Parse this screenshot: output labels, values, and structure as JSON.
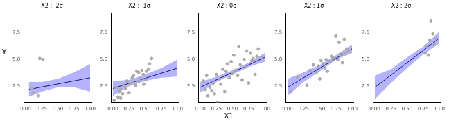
{
  "chart_data": {
    "type": "scatter",
    "x_label": "X1",
    "y_label": "Y",
    "xlim": [
      -0.03,
      1.03
    ],
    "ylim": [
      1.0,
      9.3
    ],
    "xticks": [
      {
        "value": 0,
        "label": "0.00"
      },
      {
        "value": 0.25,
        "label": "0.25"
      },
      {
        "value": 0.5,
        "label": "0.50"
      },
      {
        "value": 0.75,
        "label": "0.75"
      },
      {
        "value": 1,
        "label": "1.00"
      }
    ],
    "yticks": [
      2.5,
      {
        "value": 5,
        "label": "5.0"
      },
      7.5
    ],
    "grid": false,
    "panels": [
      {
        "title": "X2 : -2σ",
        "points": {
          "color": "#aaaaaa",
          "x": [
            0.1,
            0.12,
            0.2,
            0.22,
            0.27
          ],
          "y": [
            2.3,
            1.9,
            1.6,
            5.1,
            5.0
          ]
        },
        "fit": {
          "color": "#191970",
          "x": [
            0.05,
            1
          ],
          "y": [
            2.2,
            3.3
          ]
        },
        "band": {
          "color": "#9999ff",
          "x": [
            0.05,
            0.25,
            0.5,
            0.75,
            1
          ],
          "lower": [
            1.5,
            2.0,
            2.4,
            2.4,
            2.0
          ],
          "upper": [
            2.9,
            2.9,
            3.2,
            3.8,
            4.6
          ]
        }
      },
      {
        "title": "X2 : -1σ",
        "points": {
          "color": "#aaaaaa",
          "x": [
            0.02,
            0.05,
            0.08,
            0.1,
            0.12,
            0.15,
            0.17,
            0.2,
            0.22,
            0.25,
            0.27,
            0.3,
            0.32,
            0.35,
            0.37,
            0.4,
            0.42,
            0.45,
            0.47,
            0.5,
            0.52,
            0.55,
            0.57,
            0.6,
            0.12,
            0.3,
            0.4,
            0.48
          ],
          "y": [
            1.2,
            2.4,
            1.5,
            2.0,
            1.4,
            1.8,
            2.6,
            2.3,
            3.0,
            1.9,
            2.8,
            2.9,
            3.5,
            2.6,
            3.9,
            3.8,
            3.2,
            4.0,
            3.6,
            3.1,
            3.9,
            4.1,
            4.6,
            5.1,
            2.2,
            3.3,
            3.0,
            2.7
          ]
        },
        "fit": {
          "color": "#191970",
          "x": [
            0,
            1
          ],
          "y": [
            2.3,
            4.2
          ]
        },
        "band": {
          "color": "#9999ff",
          "x": [
            0,
            0.25,
            0.5,
            0.75,
            1
          ],
          "lower": [
            1.6,
            2.5,
            3.0,
            3.3,
            3.4
          ],
          "upper": [
            3.0,
            3.1,
            3.6,
            4.2,
            5.0
          ]
        }
      },
      {
        "title": "X2 : 0σ",
        "points": {
          "color": "#aaaaaa",
          "x": [
            0.05,
            0.08,
            0.1,
            0.12,
            0.15,
            0.18,
            0.2,
            0.22,
            0.25,
            0.27,
            0.3,
            0.32,
            0.35,
            0.38,
            0.4,
            0.42,
            0.45,
            0.48,
            0.5,
            0.52,
            0.55,
            0.58,
            0.6,
            0.62,
            0.65,
            0.68,
            0.7,
            0.72,
            0.75,
            0.78,
            0.8,
            0.82,
            0.85,
            0.88,
            0.9,
            0.95
          ],
          "y": [
            3.0,
            2.2,
            3.5,
            1.6,
            2.4,
            2.1,
            2.8,
            1.8,
            3.6,
            1.0,
            3.2,
            2.7,
            4.1,
            2.0,
            3.9,
            4.6,
            3.3,
            4.8,
            3.7,
            5.4,
            4.0,
            3.5,
            6.2,
            4.5,
            3.1,
            5.0,
            4.3,
            5.8,
            2.8,
            5.6,
            4.9,
            5.1,
            3.6,
            5.3,
            6.0,
            5.2
          ]
        },
        "fit": {
          "color": "#191970",
          "x": [
            0,
            1
          ],
          "y": [
            2.4,
            5.2
          ]
        },
        "band": {
          "color": "#9999ff",
          "x": [
            0,
            0.25,
            0.5,
            0.75,
            1
          ],
          "lower": [
            1.9,
            2.9,
            3.6,
            4.3,
            4.8
          ],
          "upper": [
            2.9,
            3.4,
            4.0,
            4.7,
            5.6
          ]
        }
      },
      {
        "title": "X2 : 1σ",
        "points": {
          "color": "#aaaaaa",
          "x": [
            0.05,
            0.15,
            0.3,
            0.35,
            0.4,
            0.45,
            0.48,
            0.5,
            0.52,
            0.55,
            0.58,
            0.6,
            0.62,
            0.65,
            0.68,
            0.7,
            0.72,
            0.75,
            0.78,
            0.8,
            0.82,
            0.85,
            0.88,
            0.9,
            0.92,
            0.95
          ],
          "y": [
            2.0,
            3.3,
            2.6,
            4.0,
            4.5,
            3.8,
            4.4,
            3.2,
            4.9,
            4.6,
            4.2,
            5.0,
            3.9,
            4.8,
            5.3,
            5.1,
            5.2,
            7.2,
            5.0,
            6.6,
            5.5,
            4.7,
            6.9,
            5.6,
            6.0,
            5.8
          ]
        },
        "fit": {
          "color": "#191970",
          "x": [
            0,
            1
          ],
          "y": [
            2.4,
            6.0
          ]
        },
        "band": {
          "color": "#9999ff",
          "x": [
            0,
            0.25,
            0.5,
            0.75,
            1
          ],
          "lower": [
            1.6,
            2.9,
            3.9,
            5.0,
            5.6
          ],
          "upper": [
            3.2,
            3.8,
            4.5,
            5.4,
            6.4
          ]
        }
      },
      {
        "title": "X2 : 2σ",
        "points": {
          "color": "#aaaaaa",
          "x": [
            0.78,
            0.8,
            0.83,
            0.85,
            0.87,
            0.9,
            0.92,
            0.95
          ],
          "y": [
            5.6,
            6.2,
            5.4,
            6.8,
            8.6,
            7.4,
            6.4,
            7.0
          ]
        },
        "fit": {
          "color": "#191970",
          "x": [
            0,
            1
          ],
          "y": [
            2.4,
            7.0
          ]
        },
        "band": {
          "color": "#9999ff",
          "x": [
            0,
            0.25,
            0.5,
            0.75,
            1
          ],
          "lower": [
            1.3,
            2.8,
            4.2,
            5.5,
            6.5
          ],
          "upper": [
            3.5,
            4.1,
            5.2,
            6.2,
            7.6
          ]
        }
      }
    ]
  }
}
